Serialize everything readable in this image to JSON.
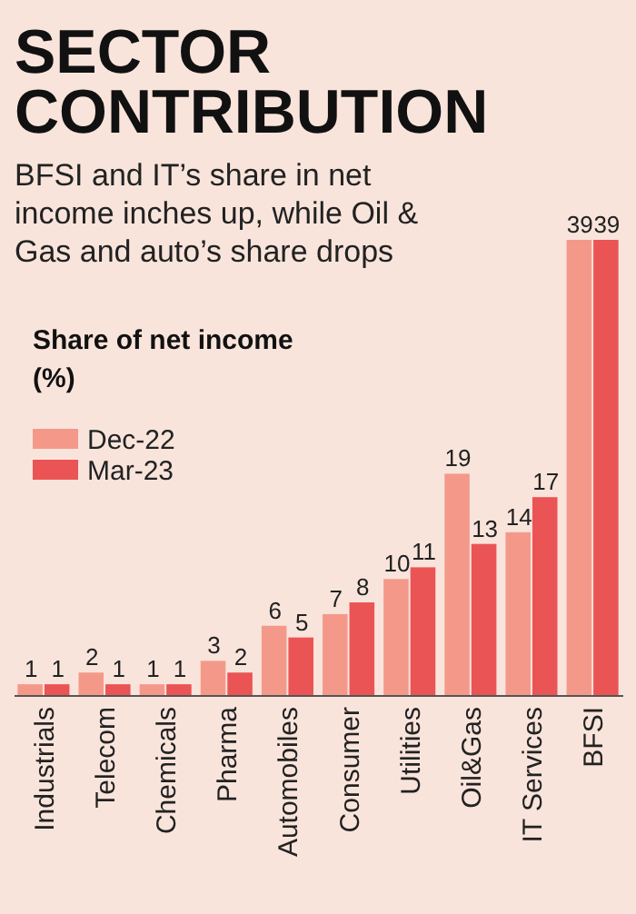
{
  "chart_data": {
    "type": "bar",
    "title": "SECTOR CONTRIBUTION",
    "subtitle": "BFSI and IT’s share in net income inches up, while Oil & Gas and auto’s share drops",
    "ylabel": "Share of net income (%)",
    "categories": [
      "Industrials",
      "Telecom",
      "Chemicals",
      "Pharma",
      "Automobiles",
      "Consumer",
      "Utilities",
      "Oil&Gas",
      "IT Services",
      "BFSI"
    ],
    "series": [
      {
        "name": "Dec-22",
        "color": "#f4998a",
        "values": [
          1,
          2,
          1,
          3,
          6,
          7,
          10,
          19,
          14,
          39
        ]
      },
      {
        "name": "Mar-23",
        "color": "#ea5455",
        "values": [
          1,
          1,
          1,
          2,
          5,
          8,
          11,
          13,
          17,
          39
        ]
      }
    ],
    "data_labels": true,
    "legend": "top left",
    "ylim": [
      0,
      39
    ]
  }
}
